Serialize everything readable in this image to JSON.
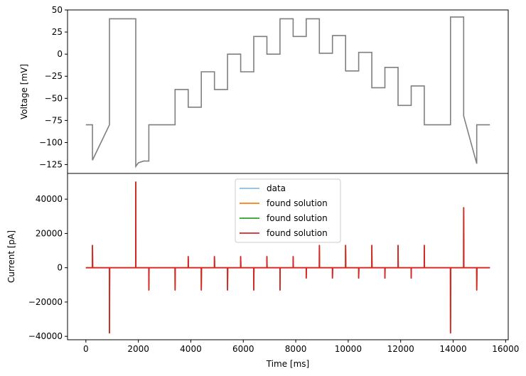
{
  "chart_data": [
    {
      "type": "line",
      "panel": "voltage",
      "xlabel": "",
      "ylabel": "Voltage [mV]",
      "xlim": [
        -700,
        16100
      ],
      "ylim": [
        -135,
        50
      ],
      "yticks": [
        50,
        25,
        0,
        -25,
        -50,
        -75,
        -100,
        -125
      ],
      "ytick_labels": [
        "50",
        "25",
        "0",
        "−25",
        "−50",
        "−75",
        "−100",
        "−125"
      ],
      "grid": false,
      "series": [
        {
          "color": "#7f7f7f",
          "x": [
            0,
            250,
            250,
            900,
            900,
            1900,
            1900,
            2000,
            2200,
            2400,
            2400,
            3400,
            3400,
            3900,
            3900,
            4400,
            4400,
            4900,
            4900,
            5400,
            5400,
            5900,
            5900,
            6400,
            6400,
            6900,
            6900,
            7400,
            7400,
            7900,
            7900,
            8400,
            8400,
            8900,
            8900,
            9400,
            9400,
            9900,
            9900,
            10400,
            10400,
            10900,
            10900,
            11400,
            11400,
            11900,
            11900,
            12400,
            12400,
            12900,
            12900,
            13900,
            13900,
            14400,
            14400,
            14900,
            14900,
            15400
          ],
          "y": [
            -80,
            -80,
            -120,
            -80,
            40,
            40,
            -127,
            -123,
            -121,
            -121,
            -80,
            -80,
            -40,
            -40,
            -60,
            -60,
            -20,
            -20,
            -40,
            -40,
            0,
            0,
            -20,
            -20,
            20,
            20,
            0,
            0,
            40,
            40,
            20,
            20,
            40,
            40,
            1,
            1,
            21,
            21,
            -19,
            -19,
            2,
            2,
            -38,
            -38,
            -15,
            -15,
            -58,
            -58,
            -36,
            -36,
            -80,
            -80,
            42,
            42,
            -70,
            -124,
            -80,
            -80
          ]
        }
      ]
    },
    {
      "type": "line",
      "panel": "current",
      "xlabel": "Time [ms]",
      "ylabel": "Current [pA]",
      "xlim": [
        -700,
        16100
      ],
      "ylim": [
        -42000,
        55000
      ],
      "xticks": [
        0,
        2000,
        4000,
        6000,
        8000,
        10000,
        12000,
        14000,
        16000
      ],
      "xtick_labels": [
        "0",
        "2000",
        "4000",
        "6000",
        "8000",
        "10000",
        "12000",
        "14000",
        "16000"
      ],
      "yticks": [
        40000,
        20000,
        0,
        -20000,
        -40000
      ],
      "ytick_labels": [
        "40000",
        "20000",
        "0",
        "−20000",
        "−40000"
      ],
      "grid": false,
      "legend": {
        "placement": "top-center",
        "entries": [
          {
            "label": "data",
            "color": "#8fbbd9"
          },
          {
            "label": "found solution",
            "color": "#ff7f0e"
          },
          {
            "label": "found solution",
            "color": "#2ca02c"
          },
          {
            "label": "found solution",
            "color": "#d62728"
          }
        ]
      },
      "spikes": [
        {
          "x": 250,
          "y": 13000
        },
        {
          "x": 900,
          "y": -38000
        },
        {
          "x": 1900,
          "y": 50000
        },
        {
          "x": 2400,
          "y": -13000
        },
        {
          "x": 3400,
          "y": -13000
        },
        {
          "x": 3900,
          "y": 6500
        },
        {
          "x": 4400,
          "y": -13000
        },
        {
          "x": 4900,
          "y": 6500
        },
        {
          "x": 5400,
          "y": -13000
        },
        {
          "x": 5900,
          "y": 6500
        },
        {
          "x": 6400,
          "y": -13000
        },
        {
          "x": 6900,
          "y": 6500
        },
        {
          "x": 7400,
          "y": -13000
        },
        {
          "x": 7900,
          "y": 6500
        },
        {
          "x": 8400,
          "y": -6000
        },
        {
          "x": 8900,
          "y": 13000
        },
        {
          "x": 9400,
          "y": -6000
        },
        {
          "x": 9900,
          "y": 13000
        },
        {
          "x": 10400,
          "y": -6000
        },
        {
          "x": 10900,
          "y": 13000
        },
        {
          "x": 11400,
          "y": -6000
        },
        {
          "x": 11900,
          "y": 13000
        },
        {
          "x": 12400,
          "y": -6000
        },
        {
          "x": 12900,
          "y": 13000
        },
        {
          "x": 13900,
          "y": -38000
        },
        {
          "x": 14400,
          "y": 35000
        },
        {
          "x": 14900,
          "y": -13000
        }
      ],
      "series": [
        {
          "label": "data",
          "color": "#8fbbd9"
        },
        {
          "label": "found solution",
          "color": "#ff7f0e"
        },
        {
          "label": "found solution",
          "color": "#2ca02c"
        },
        {
          "label": "found solution",
          "color": "#d62728"
        }
      ]
    }
  ]
}
